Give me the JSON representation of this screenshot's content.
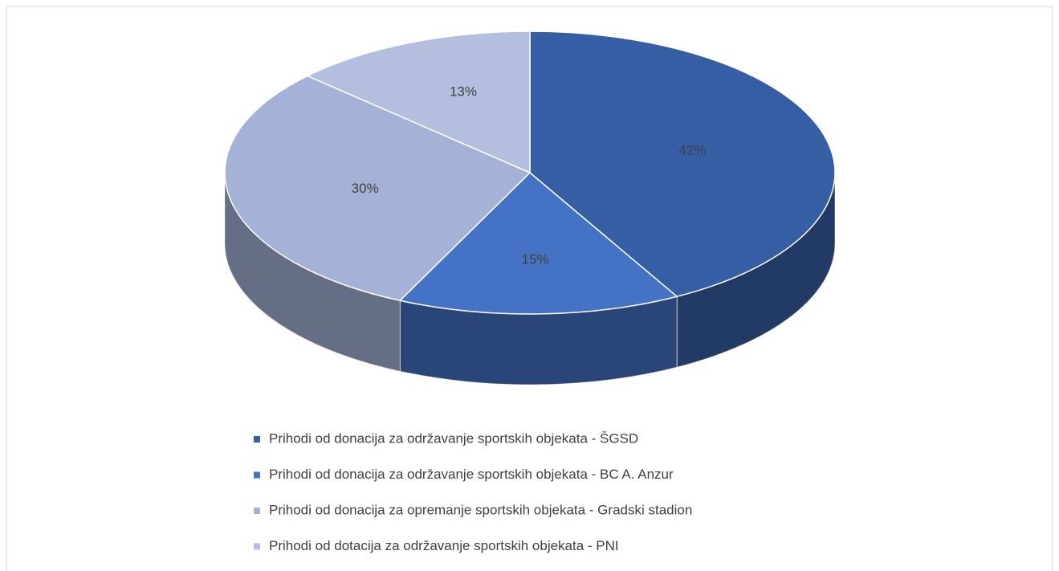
{
  "chart_data": {
    "type": "pie",
    "categories": [
      "Prihodi od donacija za održavanje sportskih objekata - ŠGSD",
      "Prihodi od donacija za održavanje sportskih objekata - BC A. Anzur",
      "Prihodi od donacija za opremanje sportskih objekata - Gradski stadion",
      "Prihodi od dotacija za održavanje sportskih objekata - PNI"
    ],
    "values": [
      42,
      15,
      30,
      13
    ],
    "value_labels": [
      "42%",
      "15%",
      "30%",
      "13%"
    ],
    "colors": [
      "#365ea5",
      "#4472c4",
      "#a5b2d8",
      "#b4bedf"
    ],
    "legend": "bottom"
  }
}
